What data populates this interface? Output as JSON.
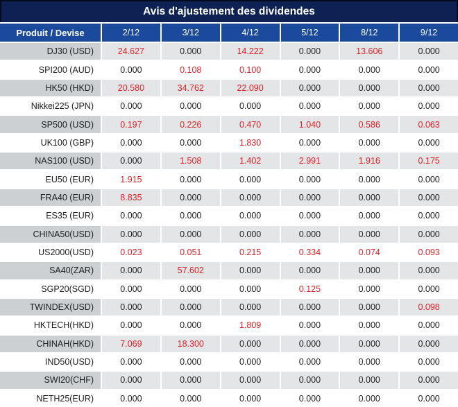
{
  "title": "Avis d'ajustement des dividendes",
  "colors": {
    "title_bg": "#0d2153",
    "title_border": "#000a1f",
    "header_bg": "#1b4a9c",
    "row_stripe": "#e4e5e7",
    "row_stripe_first_col": "#cdd0d3",
    "row_plain": "#ffffff",
    "highlight_red": "#df2127",
    "text_dark": "#202020",
    "separator_white": "#ffffff"
  },
  "chart_data": {
    "type": "table",
    "title": "Avis d'ajustement des dividendes",
    "columns": [
      "Produit / Devise",
      "2/12",
      "3/12",
      "4/12",
      "5/12",
      "8/12",
      "9/12"
    ],
    "rows": [
      {
        "product": "DJ30 (USD)",
        "values": [
          "24.627",
          "0.000",
          "14.222",
          "0.000",
          "13.606",
          "0.000"
        ],
        "highlight": [
          1,
          0,
          1,
          0,
          1,
          0
        ]
      },
      {
        "product": "SPI200 (AUD)",
        "values": [
          "0.000",
          "0.108",
          "0.100",
          "0.000",
          "0.000",
          "0.000"
        ],
        "highlight": [
          0,
          1,
          1,
          0,
          0,
          0
        ]
      },
      {
        "product": "HK50 (HKD)",
        "values": [
          "20.580",
          "34.762",
          "22.090",
          "0.000",
          "0.000",
          "0.000"
        ],
        "highlight": [
          1,
          1,
          1,
          0,
          0,
          0
        ]
      },
      {
        "product": "Nikkei225 (JPN)",
        "values": [
          "0.000",
          "0.000",
          "0.000",
          "0.000",
          "0.000",
          "0.000"
        ],
        "highlight": [
          0,
          0,
          0,
          0,
          0,
          0
        ]
      },
      {
        "product": "SP500 (USD)",
        "values": [
          "0.197",
          "0.226",
          "0.470",
          "1.040",
          "0.586",
          "0.063"
        ],
        "highlight": [
          1,
          1,
          1,
          1,
          1,
          1
        ]
      },
      {
        "product": "UK100 (GBP)",
        "values": [
          "0.000",
          "0.000",
          "1.830",
          "0.000",
          "0.000",
          "0.000"
        ],
        "highlight": [
          0,
          0,
          1,
          0,
          0,
          0
        ]
      },
      {
        "product": "NAS100 (USD)",
        "values": [
          "0.000",
          "1.508",
          "1.402",
          "2.991",
          "1.916",
          "0.175"
        ],
        "highlight": [
          0,
          1,
          1,
          1,
          1,
          1
        ]
      },
      {
        "product": "EU50 (EUR)",
        "values": [
          "1.915",
          "0.000",
          "0.000",
          "0.000",
          "0.000",
          "0.000"
        ],
        "highlight": [
          1,
          0,
          0,
          0,
          0,
          0
        ]
      },
      {
        "product": "FRA40 (EUR)",
        "values": [
          "8.835",
          "0.000",
          "0.000",
          "0.000",
          "0.000",
          "0.000"
        ],
        "highlight": [
          1,
          0,
          0,
          0,
          0,
          0
        ]
      },
      {
        "product": "ES35 (EUR)",
        "values": [
          "0.000",
          "0.000",
          "0.000",
          "0.000",
          "0.000",
          "0.000"
        ],
        "highlight": [
          0,
          0,
          0,
          0,
          0,
          0
        ]
      },
      {
        "product": "CHINA50(USD)",
        "values": [
          "0.000",
          "0.000",
          "0.000",
          "0.000",
          "0.000",
          "0.000"
        ],
        "highlight": [
          0,
          0,
          0,
          0,
          0,
          0
        ]
      },
      {
        "product": "US2000(USD)",
        "values": [
          "0.023",
          "0.051",
          "0.215",
          "0.334",
          "0.074",
          "0.093"
        ],
        "highlight": [
          1,
          1,
          1,
          1,
          1,
          1
        ]
      },
      {
        "product": "SA40(ZAR)",
        "values": [
          "0.000",
          "57.602",
          "0.000",
          "0.000",
          "0.000",
          "0.000"
        ],
        "highlight": [
          0,
          1,
          0,
          0,
          0,
          0
        ]
      },
      {
        "product": "SGP20(SGD)",
        "values": [
          "0.000",
          "0.000",
          "0.000",
          "0.125",
          "0.000",
          "0.000"
        ],
        "highlight": [
          0,
          0,
          0,
          1,
          0,
          0
        ]
      },
      {
        "product": "TWINDEX(USD)",
        "values": [
          "0.000",
          "0.000",
          "0.000",
          "0.000",
          "0.000",
          "0.098"
        ],
        "highlight": [
          0,
          0,
          0,
          0,
          0,
          1
        ]
      },
      {
        "product": "HKTECH(HKD)",
        "values": [
          "0.000",
          "0.000",
          "1.809",
          "0.000",
          "0.000",
          "0.000"
        ],
        "highlight": [
          0,
          0,
          1,
          0,
          0,
          0
        ]
      },
      {
        "product": "CHINAH(HKD)",
        "values": [
          "7.069",
          "18.300",
          "0.000",
          "0.000",
          "0.000",
          "0.000"
        ],
        "highlight": [
          1,
          1,
          0,
          0,
          0,
          0
        ]
      },
      {
        "product": "IND50(USD)",
        "values": [
          "0.000",
          "0.000",
          "0.000",
          "0.000",
          "0.000",
          "0.000"
        ],
        "highlight": [
          0,
          0,
          0,
          0,
          0,
          0
        ]
      },
      {
        "product": "SWI20(CHF)",
        "values": [
          "0.000",
          "0.000",
          "0.000",
          "0.000",
          "0.000",
          "0.000"
        ],
        "highlight": [
          0,
          0,
          0,
          0,
          0,
          0
        ]
      },
      {
        "product": "NETH25(EUR)",
        "values": [
          "0.000",
          "0.000",
          "0.000",
          "0.000",
          "0.000",
          "0.000"
        ],
        "highlight": [
          0,
          0,
          0,
          0,
          0,
          0
        ]
      }
    ]
  }
}
